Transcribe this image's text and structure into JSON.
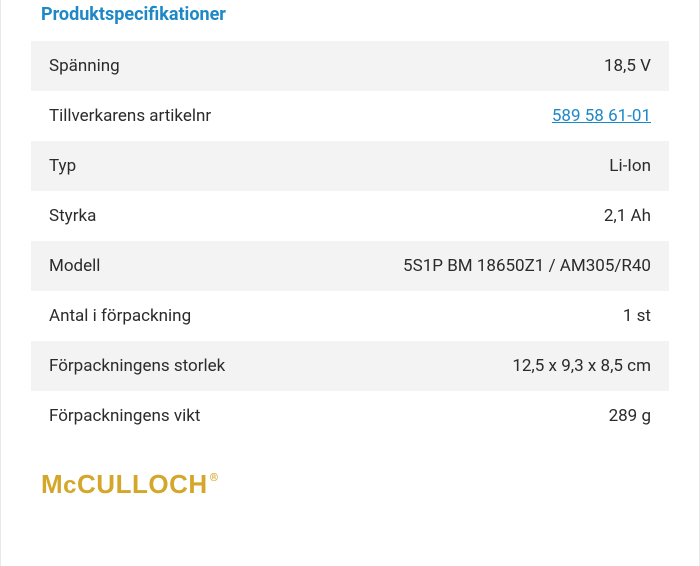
{
  "section_title": "Produktspecifikationer",
  "specs": [
    {
      "label": "Spänning",
      "value": "18,5 V",
      "link": false
    },
    {
      "label": "Tillverkarens artikelnr",
      "value": "589 58 61-01",
      "link": true
    },
    {
      "label": "Typ",
      "value": "Li-Ion",
      "link": false
    },
    {
      "label": "Styrka",
      "value": "2,1 Ah",
      "link": false
    },
    {
      "label": "Modell",
      "value": "5S1P BM 18650Z1 / AM305/R40",
      "link": false
    },
    {
      "label": "Antal i förpackning",
      "value": "1 st",
      "link": false
    },
    {
      "label": "Förpackningens storlek",
      "value": "12,5 x 9,3 x 8,5 cm",
      "link": false
    },
    {
      "label": "Förpackningens vikt",
      "value": "289  g",
      "link": false
    }
  ],
  "brand": {
    "prefix": "M",
    "lower": "c",
    "rest": "CULLOCH",
    "reg": "®"
  },
  "colors": {
    "title": "#1e88c7",
    "row_odd_bg": "#f3f3f3",
    "row_even_bg": "#ffffff",
    "text": "#2b2b2b",
    "link": "#1e88c7",
    "brand": "#d4a62a"
  }
}
